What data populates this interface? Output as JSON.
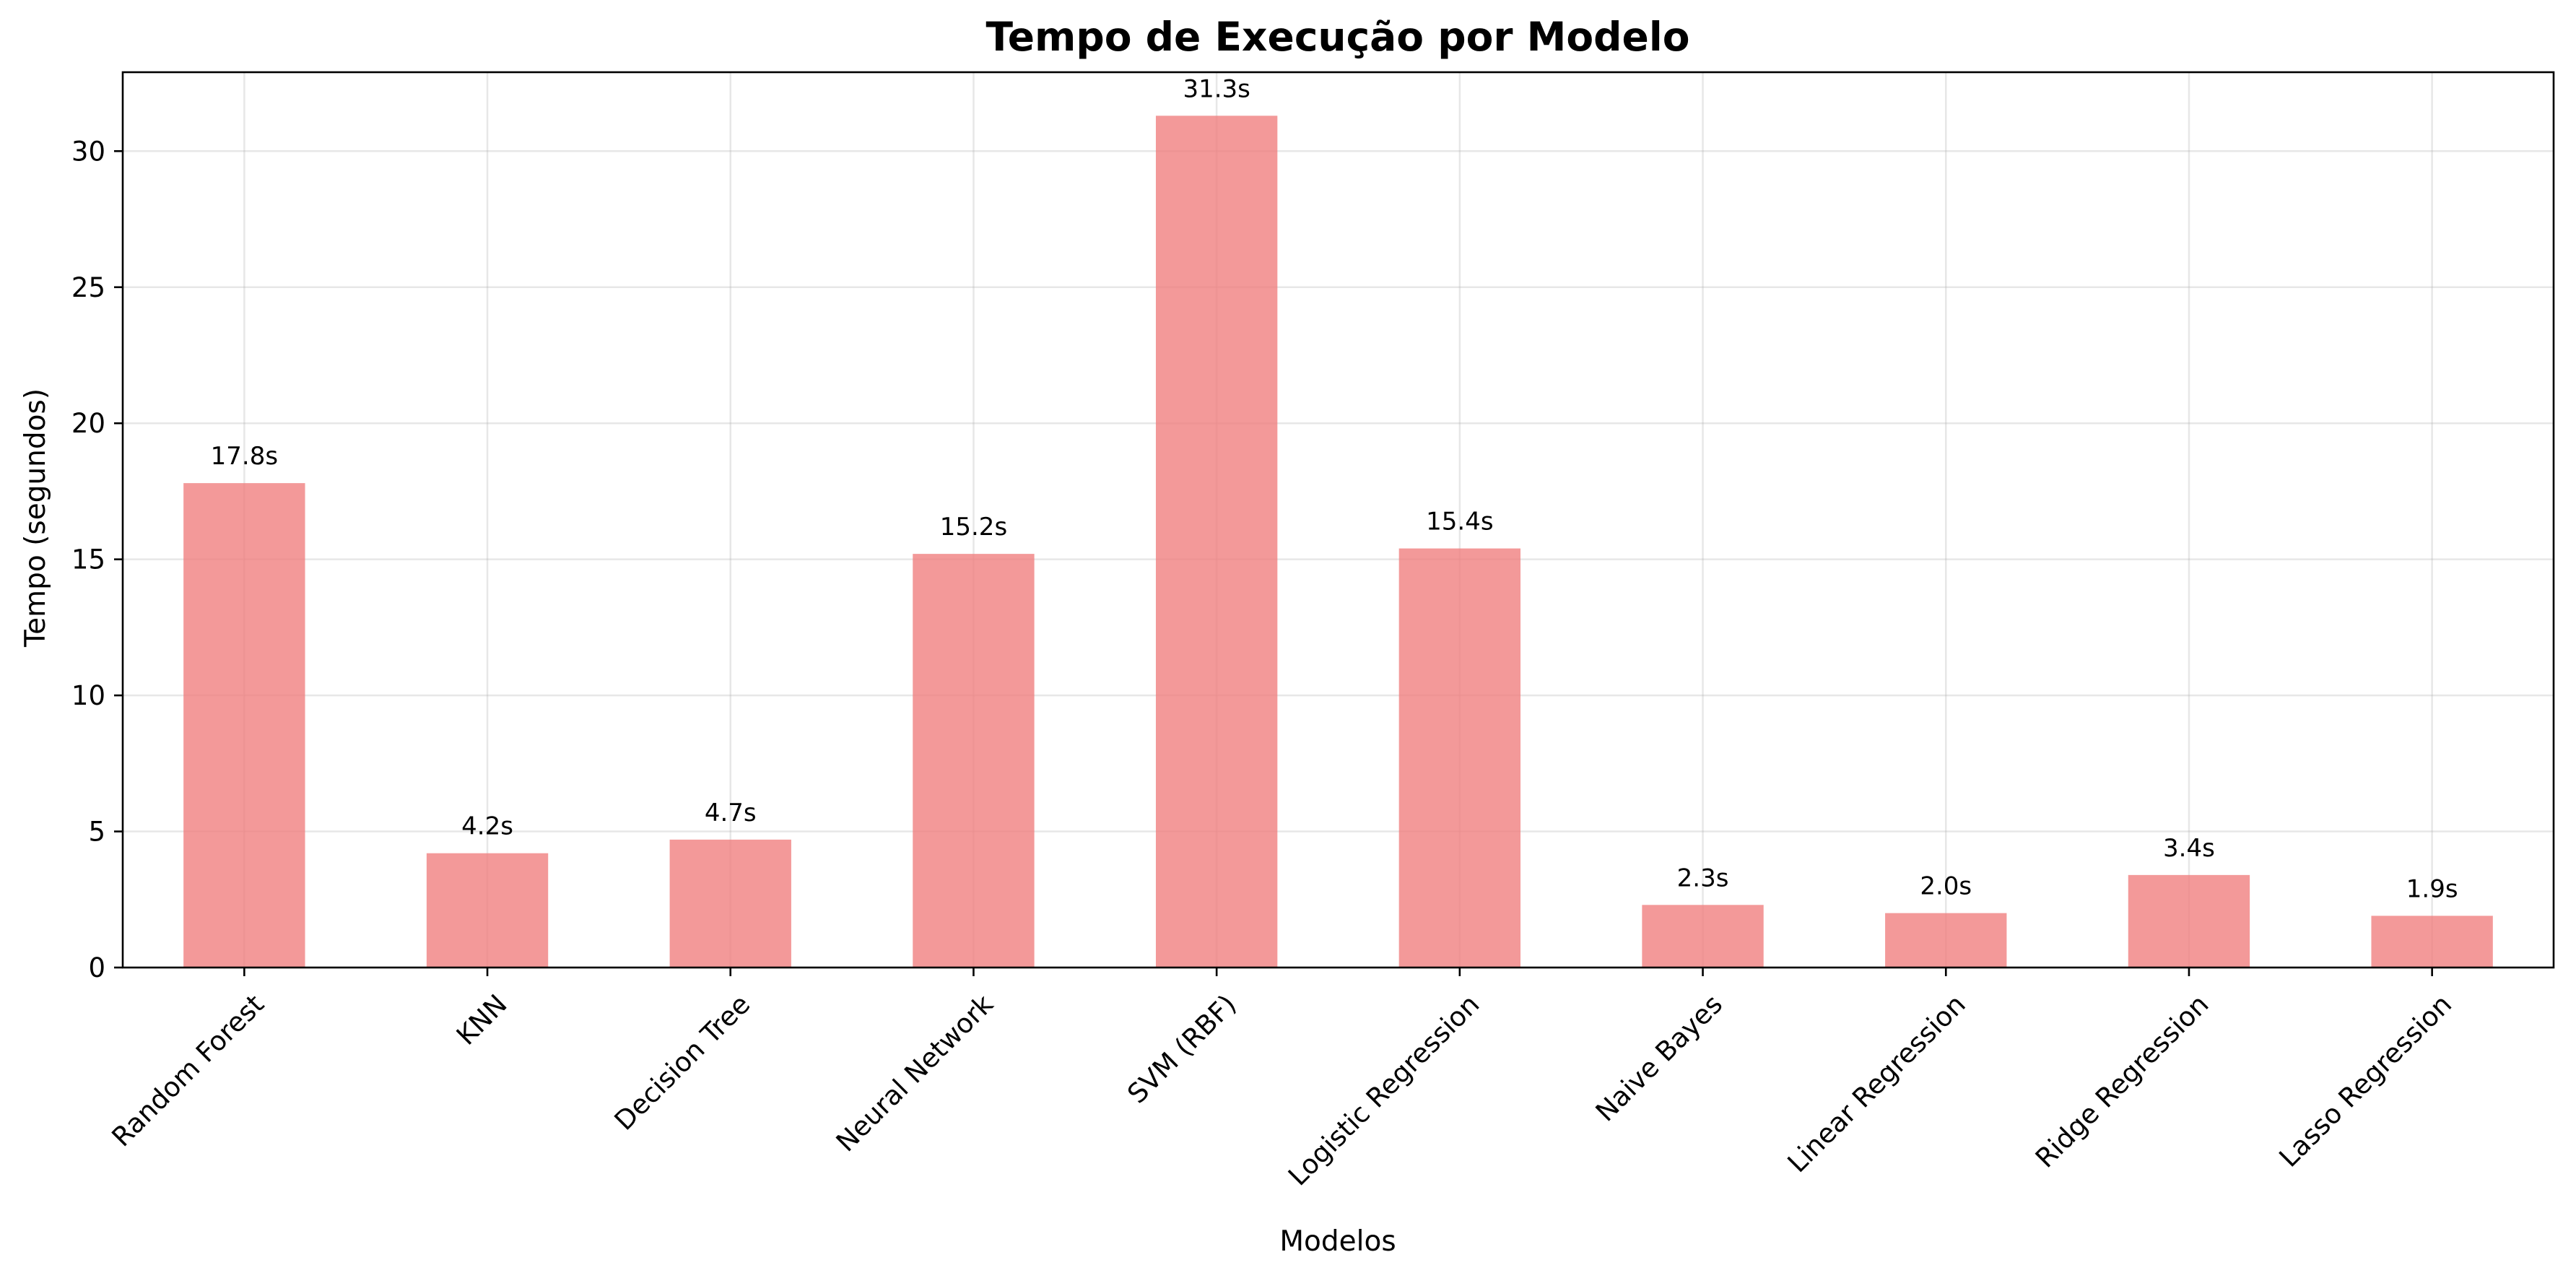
{
  "chart_data": {
    "type": "bar",
    "title": "Tempo de Execução por Modelo",
    "xlabel": "Modelos",
    "ylabel": "Tempo (segundos)",
    "categories": [
      "Random Forest",
      "KNN",
      "Decision Tree",
      "Neural Network",
      "SVM (RBF)",
      "Logistic Regression",
      "Naive Bayes",
      "Linear Regression",
      "Ridge Regression",
      "Lasso Regression"
    ],
    "values": [
      17.8,
      4.2,
      4.7,
      15.2,
      31.3,
      15.4,
      2.3,
      2.0,
      3.4,
      1.9
    ],
    "data_labels": [
      "17.8s",
      "4.2s",
      "4.7s",
      "15.2s",
      "31.3s",
      "15.4s",
      "2.3s",
      "2.0s",
      "3.4s",
      "1.9s"
    ],
    "ylim": [
      0,
      32.9
    ],
    "yticks": [
      0,
      5,
      10,
      15,
      20,
      25,
      30
    ],
    "grid": true,
    "bar_color": "#f08080"
  }
}
